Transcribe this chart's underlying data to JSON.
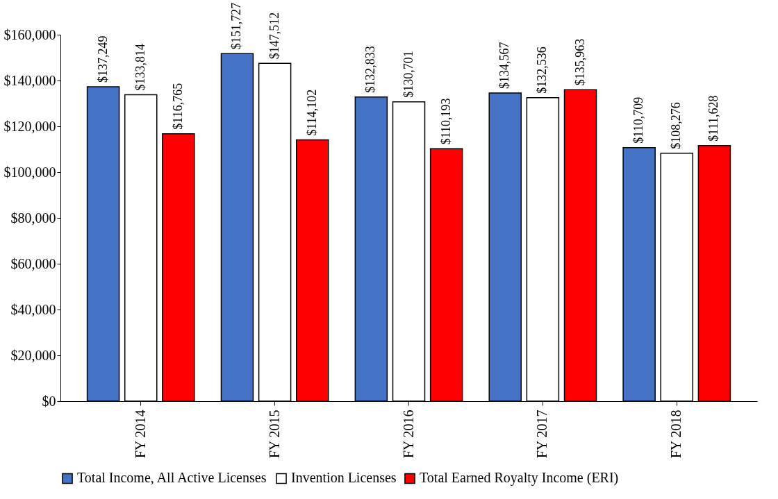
{
  "chart_data": {
    "type": "bar",
    "categories": [
      "FY 2014",
      "FY 2015",
      "FY 2016",
      "FY 2017",
      "FY 2018"
    ],
    "series": [
      {
        "name": "Total Income, All Active Licenses",
        "color": "#4472c4",
        "values": [
          137249,
          151727,
          132833,
          134567,
          110709
        ],
        "value_labels": [
          "$137,249",
          "$151,727",
          "$132,833",
          "$134,567",
          "$110,709"
        ]
      },
      {
        "name": "Invention Licenses",
        "color": "#ffffff",
        "values": [
          133814,
          147512,
          130701,
          132536,
          108276
        ],
        "value_labels": [
          "$133,814",
          "$147,512",
          "$130,701",
          "$132,536",
          "$108,276"
        ]
      },
      {
        "name": "Total Earned Royalty Income (ERI)",
        "color": "#ff0000",
        "values": [
          116765,
          114102,
          110193,
          135963,
          111628
        ],
        "value_labels": [
          "$116,765",
          "$114,102",
          "$110,193",
          "$135,963",
          "$111,628"
        ]
      }
    ],
    "ylim": [
      0,
      160000
    ],
    "yticks": [
      {
        "value": 0,
        "label": "$0"
      },
      {
        "value": 20000,
        "label": "$20,000"
      },
      {
        "value": 40000,
        "label": "$40,000"
      },
      {
        "value": 60000,
        "label": "$60,000"
      },
      {
        "value": 80000,
        "label": "$80,000"
      },
      {
        "value": 100000,
        "label": "$100,000"
      },
      {
        "value": 120000,
        "label": "$120,000"
      },
      {
        "value": 140000,
        "label": "$140,000"
      },
      {
        "value": 160000,
        "label": "$160,000"
      }
    ],
    "legend": "bottom"
  }
}
